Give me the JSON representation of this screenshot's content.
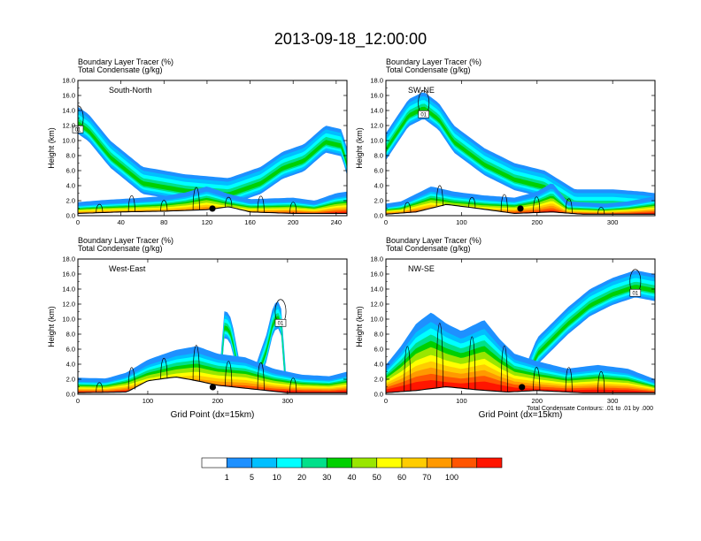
{
  "title": "2013-09-18_12:00:00",
  "footnote": "Total Condensate Contours: .01 to .01 by .000",
  "colorbar": {
    "labels": [
      "1",
      "5",
      "10",
      "20",
      "30",
      "40",
      "50",
      "60",
      "70",
      "100"
    ],
    "colors": [
      "#ffffff",
      "#1e90ff",
      "#00bfff",
      "#00ffff",
      "#00e08a",
      "#00d000",
      "#99e600",
      "#ffff00",
      "#ffcc00",
      "#ff9900",
      "#ff5500",
      "#ff1500"
    ]
  },
  "chart_data": [
    {
      "type": "heatmap",
      "panel_label": "South-North",
      "field_label_1": "Boundary Layer Tracer    (%)",
      "field_label_2": "Total Condensate    (g/kg)",
      "ylabel": "Height (km)",
      "xlabel": "",
      "xlim": [
        0,
        250
      ],
      "xticks": [
        "0",
        "40",
        "80",
        "120",
        "160",
        "200",
        "240"
      ],
      "ylim": [
        0,
        18
      ],
      "yticks": [
        "0.0",
        "2.0",
        "4.0",
        "6.0",
        "8.0",
        "10.0",
        "12.0",
        "14.0",
        "16.0",
        "18.0"
      ],
      "contour_label": "01",
      "marker_x": 125,
      "boundary_layer_top_km": [
        [
          0,
          1.4
        ],
        [
          25,
          1.7
        ],
        [
          50,
          1.9
        ],
        [
          80,
          2.2
        ],
        [
          100,
          2.7
        ],
        [
          120,
          3.5
        ],
        [
          140,
          2.5
        ],
        [
          160,
          1.8
        ],
        [
          180,
          1.9
        ],
        [
          200,
          2.0
        ],
        [
          220,
          1.6
        ],
        [
          240,
          2.6
        ],
        [
          250,
          2.8
        ]
      ],
      "upper_cloud_top_km": [
        [
          0,
          14.5
        ],
        [
          10,
          13.5
        ],
        [
          30,
          10.0
        ],
        [
          60,
          6.5
        ],
        [
          100,
          5.5
        ],
        [
          140,
          5.0
        ],
        [
          170,
          6.5
        ],
        [
          190,
          8.5
        ],
        [
          210,
          9.5
        ],
        [
          230,
          12.0
        ],
        [
          245,
          11.5
        ],
        [
          250,
          9.0
        ]
      ],
      "terrain_km": [
        [
          0,
          0.3
        ],
        [
          40,
          0.5
        ],
        [
          80,
          0.6
        ],
        [
          120,
          0.8
        ],
        [
          140,
          1.2
        ],
        [
          160,
          0.5
        ],
        [
          200,
          0.3
        ],
        [
          250,
          0.3
        ]
      ]
    },
    {
      "type": "heatmap",
      "panel_label": "SW-NE",
      "field_label_1": "Boundary Layer Tracer    (%)",
      "field_label_2": "Total Condensate    (g/kg)",
      "ylabel": "Height (km)",
      "xlabel": "",
      "xlim": [
        0,
        356
      ],
      "xticks": [
        "0",
        "100",
        "200",
        "300"
      ],
      "ylim": [
        0,
        18
      ],
      "yticks": [
        "0.0",
        "2.0",
        "4.0",
        "6.0",
        "8.0",
        "10.0",
        "12.0",
        "14.0",
        "16.0",
        "18.0"
      ],
      "contour_label": "01",
      "marker_x": 178,
      "boundary_layer_top_km": [
        [
          0,
          1.2
        ],
        [
          20,
          1.5
        ],
        [
          40,
          2.5
        ],
        [
          60,
          3.5
        ],
        [
          90,
          2.8
        ],
        [
          130,
          2.3
        ],
        [
          170,
          2.0
        ],
        [
          200,
          2.8
        ],
        [
          220,
          4.0
        ],
        [
          240,
          1.5
        ],
        [
          290,
          1.2
        ],
        [
          320,
          1.5
        ],
        [
          356,
          2.2
        ]
      ],
      "upper_cloud_top_km": [
        [
          0,
          11.0
        ],
        [
          30,
          15.5
        ],
        [
          50,
          16.5
        ],
        [
          70,
          15.0
        ],
        [
          90,
          12.0
        ],
        [
          130,
          9.0
        ],
        [
          170,
          7.0
        ],
        [
          210,
          6.0
        ],
        [
          250,
          3.5
        ],
        [
          300,
          3.5
        ],
        [
          340,
          3.2
        ],
        [
          356,
          3.0
        ]
      ],
      "terrain_km": [
        [
          0,
          0.2
        ],
        [
          40,
          0.5
        ],
        [
          80,
          1.5
        ],
        [
          120,
          1.0
        ],
        [
          170,
          0.3
        ],
        [
          220,
          0.5
        ],
        [
          260,
          0.2
        ],
        [
          356,
          0.2
        ]
      ]
    },
    {
      "type": "heatmap",
      "panel_label": "West-East",
      "field_label_1": "Boundary Layer Tracer    (%)",
      "field_label_2": "Total Condensate    (g/kg)",
      "ylabel": "Height (km)",
      "xlabel": "Grid Point (dx=15km)",
      "xlim": [
        0,
        385
      ],
      "xticks": [
        "0",
        "100",
        "200",
        "300"
      ],
      "ylim": [
        0,
        18
      ],
      "yticks": [
        "0.0",
        "2.0",
        "4.0",
        "6.0",
        "8.0",
        "10.0",
        "12.0",
        "14.0",
        "16.0",
        "18.0"
      ],
      "contour_label": "01",
      "marker_x": 193,
      "boundary_layer_top_km": [
        [
          0,
          1.8
        ],
        [
          40,
          1.7
        ],
        [
          70,
          2.5
        ],
        [
          100,
          4.2
        ],
        [
          140,
          5.5
        ],
        [
          170,
          6.0
        ],
        [
          200,
          5.0
        ],
        [
          240,
          4.5
        ],
        [
          280,
          3.0
        ],
        [
          320,
          2.2
        ],
        [
          360,
          2.0
        ],
        [
          385,
          2.6
        ]
      ],
      "upper_cloud_top_km": [
        [
          0,
          0.0
        ],
        [
          200,
          0.0
        ],
        [
          210,
          11.5
        ],
        [
          220,
          10.0
        ],
        [
          240,
          0.0
        ],
        [
          270,
          8.0
        ],
        [
          280,
          12.0
        ],
        [
          290,
          12.5
        ],
        [
          300,
          0.0
        ],
        [
          385,
          0.0
        ]
      ],
      "terrain_km": [
        [
          0,
          0.2
        ],
        [
          70,
          0.3
        ],
        [
          100,
          1.8
        ],
        [
          140,
          2.3
        ],
        [
          170,
          1.8
        ],
        [
          200,
          1.2
        ],
        [
          240,
          0.8
        ],
        [
          300,
          0.2
        ],
        [
          385,
          0.2
        ]
      ]
    },
    {
      "type": "heatmap",
      "panel_label": "NW-SE",
      "field_label_1": "Boundary Layer Tracer    (%)",
      "field_label_2": "Total Condensate    (g/kg)",
      "ylabel": "Height (km)",
      "xlabel": "Grid Point (dx=15km)",
      "xlim": [
        0,
        356
      ],
      "xticks": [
        "0",
        "100",
        "200",
        "300"
      ],
      "ylim": [
        0,
        18
      ],
      "yticks": [
        "0.0",
        "2.0",
        "4.0",
        "6.0",
        "8.0",
        "10.0",
        "12.0",
        "14.0",
        "16.0",
        "18.0"
      ],
      "contour_label": "01",
      "marker_x": 180,
      "boundary_layer_top_km": [
        [
          0,
          3.5
        ],
        [
          20,
          6.0
        ],
        [
          40,
          9.0
        ],
        [
          60,
          10.5
        ],
        [
          80,
          9.0
        ],
        [
          100,
          8.0
        ],
        [
          130,
          9.5
        ],
        [
          150,
          7.0
        ],
        [
          170,
          5.0
        ],
        [
          200,
          4.0
        ],
        [
          240,
          3.0
        ],
        [
          280,
          3.5
        ],
        [
          320,
          3.0
        ],
        [
          356,
          1.6
        ]
      ],
      "upper_cloud_top_km": [
        [
          0,
          0.0
        ],
        [
          170,
          0.0
        ],
        [
          200,
          7.5
        ],
        [
          240,
          11.5
        ],
        [
          270,
          14.0
        ],
        [
          300,
          15.5
        ],
        [
          330,
          16.5
        ],
        [
          356,
          16.0
        ]
      ],
      "terrain_km": [
        [
          0,
          0.2
        ],
        [
          40,
          0.5
        ],
        [
          80,
          1.0
        ],
        [
          120,
          0.6
        ],
        [
          160,
          0.3
        ],
        [
          200,
          0.5
        ],
        [
          260,
          0.2
        ],
        [
          356,
          0.2
        ]
      ]
    }
  ]
}
